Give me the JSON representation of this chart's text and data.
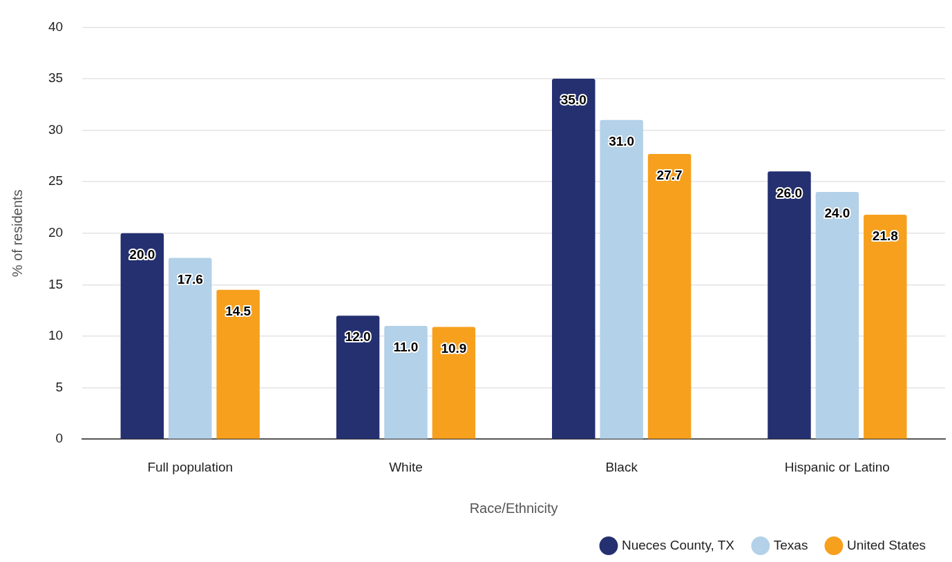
{
  "chart_data": {
    "type": "bar",
    "xlabel": "Race/Ethnicity",
    "ylabel": "% of residents",
    "categories": [
      "Full population",
      "White",
      "Black",
      "Hispanic or Latino"
    ],
    "series": [
      {
        "name": "Nueces County, TX",
        "color": "#243070",
        "values": [
          20.0,
          12.0,
          35.0,
          26.0
        ],
        "value_labels": [
          "20.0",
          "12.0",
          "35.0",
          "26.0"
        ]
      },
      {
        "name": "Texas",
        "color": "#b3d1e8",
        "values": [
          17.6,
          11.0,
          31.0,
          24.0
        ],
        "value_labels": [
          "17.6",
          "11.0",
          "31.0",
          "24.0"
        ]
      },
      {
        "name": "United States",
        "color": "#f7a01e",
        "values": [
          14.5,
          10.9,
          27.7,
          21.8
        ],
        "value_labels": [
          "14.5",
          "10.9",
          "27.7",
          "21.8"
        ]
      }
    ],
    "ylim": [
      0,
      40
    ],
    "yticks": [
      0,
      5,
      10,
      15,
      20,
      25,
      30,
      35,
      40
    ],
    "grid": "y",
    "legend": "bottom right"
  }
}
